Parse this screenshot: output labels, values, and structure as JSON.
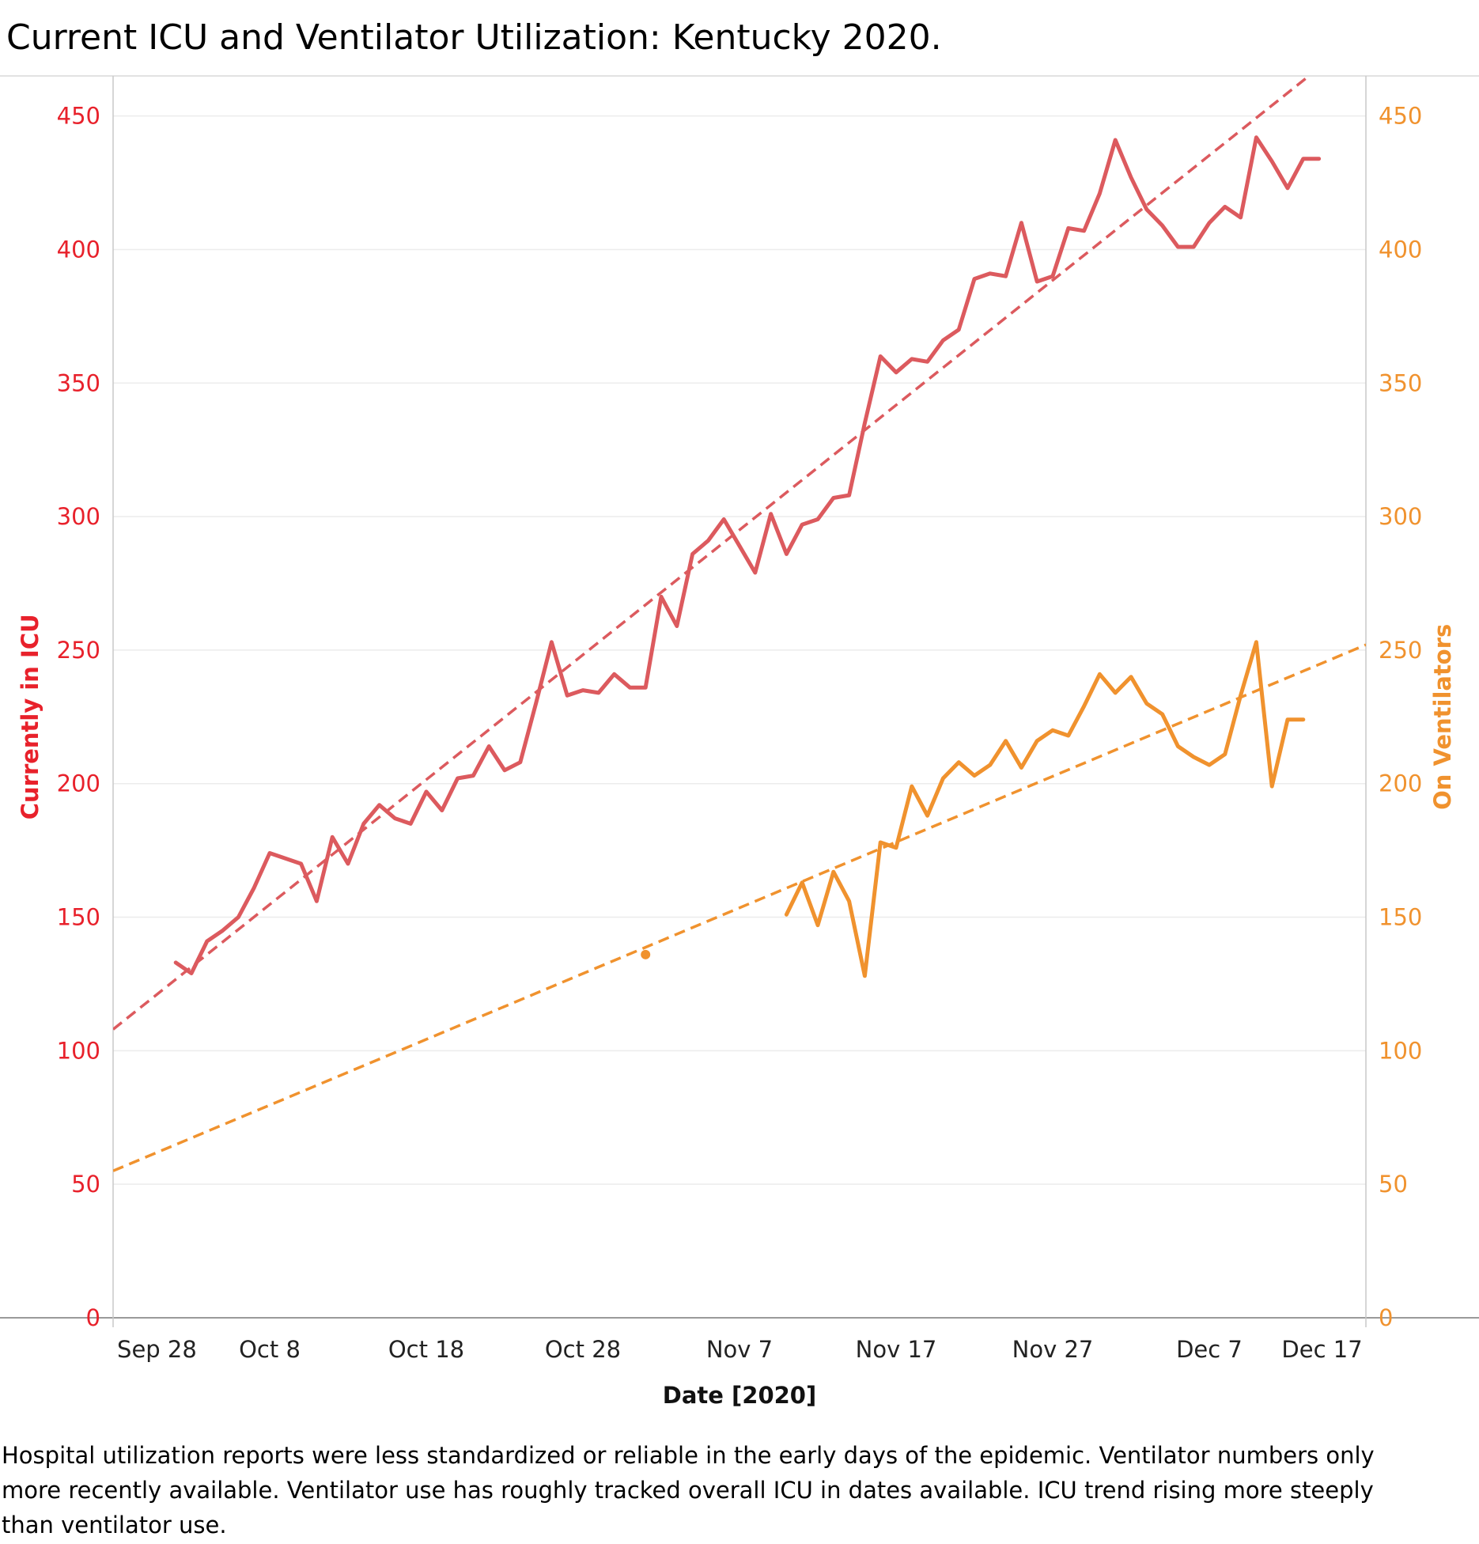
{
  "title": "Current ICU and Ventilator Utilization:  Kentucky 2020.",
  "footnote": "Hospital utilization reports were less standardized or reliable in the early days of the epidemic.  Ventilator numbers only more recently available.  Ventilator use has roughly tracked overall ICU in dates available.  ICU trend rising more steeply than ventilator use.",
  "colors": {
    "icu": "#dc5a5e",
    "vent": "#f0922e",
    "left_axis_text": "#e8212b",
    "right_axis_text": "#f0922e",
    "grid": "#ececec",
    "axis_line": "#c8c8c8"
  },
  "chart_data": {
    "type": "line",
    "xlabel": "Date [2020]",
    "ylabel_left": "Currently in ICU",
    "ylabel_right": "On  Ventilators",
    "x_tick_labels": [
      "Sep 28",
      "Oct 8",
      "Oct 18",
      "Oct 28",
      "Nov 7",
      "Nov 17",
      "Nov 27",
      "Dec 7",
      "Dec 17"
    ],
    "x_tick_days": [
      3.8,
      11,
      21,
      31,
      41,
      51,
      61,
      71,
      78.2
    ],
    "xlim_days": [
      1,
      81
    ],
    "day_zero": "Sep 20",
    "y_left_ticks": [
      0,
      50,
      100,
      150,
      200,
      250,
      300,
      350,
      400,
      450
    ],
    "y_right_ticks": [
      0,
      50,
      100,
      150,
      200,
      250,
      300,
      350,
      400,
      450
    ],
    "ylim": [
      0,
      465
    ],
    "grid": true,
    "series": [
      {
        "name": "Currently in ICU",
        "axis": "left",
        "x": [
          5,
          6,
          7,
          8,
          9,
          10,
          11,
          12,
          13,
          14,
          15,
          16,
          17,
          18,
          19,
          20,
          21,
          22,
          23,
          24,
          25,
          26,
          27,
          28,
          29,
          30,
          31,
          32,
          33,
          34,
          35,
          36,
          37,
          38,
          39,
          40,
          41,
          42,
          43,
          44,
          45,
          46,
          47,
          48,
          49,
          50,
          51,
          52,
          53,
          54,
          55,
          56,
          57,
          58,
          59,
          60,
          61,
          62,
          63,
          64,
          65,
          66,
          67,
          68,
          69,
          70,
          71,
          72,
          73,
          74,
          75,
          76,
          77,
          78
        ],
        "values": [
          133,
          129,
          141,
          145,
          150,
          161,
          174,
          172,
          170,
          156,
          180,
          170,
          185,
          192,
          187,
          185,
          197,
          190,
          202,
          203,
          214,
          205,
          208,
          230,
          253,
          233,
          235,
          234,
          241,
          236,
          236,
          270,
          259,
          286,
          291,
          299,
          289,
          279,
          301,
          286,
          297,
          299,
          307,
          308,
          335,
          360,
          354,
          359,
          358,
          366,
          370,
          389,
          391,
          390,
          410,
          388,
          390,
          408,
          407,
          421,
          441,
          427,
          415,
          409,
          401,
          401,
          410,
          416,
          412,
          442,
          433,
          423,
          434,
          434
        ]
      },
      {
        "name": "On  Ventilators",
        "axis": "right",
        "x": [
          35,
          44,
          45,
          46,
          47,
          48,
          49,
          50,
          51,
          52,
          53,
          54,
          55,
          56,
          57,
          58,
          59,
          60,
          61,
          62,
          63,
          64,
          65,
          66,
          67,
          68,
          69,
          70,
          71,
          72,
          73,
          74,
          75,
          76,
          77
        ],
        "values": [
          136,
          151,
          163,
          147,
          167,
          156,
          128,
          178,
          176,
          199,
          188,
          202,
          208,
          203,
          207,
          216,
          206,
          216,
          220,
          218,
          229,
          241,
          234,
          240,
          230,
          226,
          214,
          210,
          207,
          211,
          233,
          253,
          199,
          224,
          224
        ],
        "isolated_point_day": 35
      }
    ],
    "trend_lines": [
      {
        "series": "Currently in ICU",
        "style": "dashed",
        "from": [
          1,
          108
        ],
        "to": [
          81,
          482
        ]
      },
      {
        "series": "On  Ventilators",
        "style": "dashed",
        "from": [
          1,
          55
        ],
        "to": [
          81,
          252
        ]
      }
    ]
  }
}
